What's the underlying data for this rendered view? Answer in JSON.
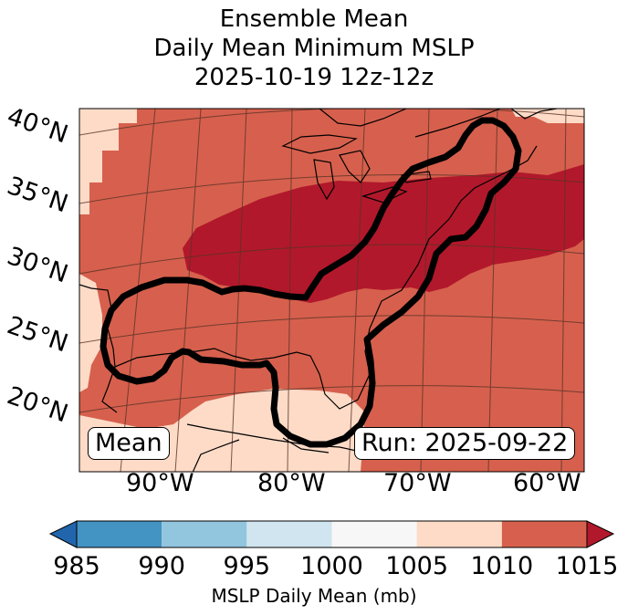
{
  "chart_data": {
    "type": "heatmap",
    "title": [
      "Ensemble Mean",
      "Daily Mean Minimum MSLP",
      "2025-10-19 12z-12z"
    ],
    "annotation_left": "Mean",
    "annotation_right": "Run: 2025-09-22",
    "lat_ticks": [
      "40°N",
      "35°N",
      "30°N",
      "25°N",
      "20°N"
    ],
    "lon_ticks": [
      "90°W",
      "80°W",
      "70°W",
      "60°W"
    ],
    "colorbar": {
      "label": "MSLP Daily Mean (mb)",
      "ticks": [
        "985",
        "990",
        "995",
        "1000",
        "1005",
        "1010",
        "1015"
      ],
      "bins": [
        {
          "range": [
            985,
            990
          ],
          "color": "#4393c3"
        },
        {
          "range": [
            990,
            995
          ],
          "color": "#92c5de"
        },
        {
          "range": [
            995,
            1000
          ],
          "color": "#d1e5f0"
        },
        {
          "range": [
            1000,
            1005
          ],
          "color": "#f7f7f7"
        },
        {
          "range": [
            1005,
            1010
          ],
          "color": "#fddbc7"
        },
        {
          "range": [
            1010,
            1015
          ],
          "color": "#d6604d"
        }
      ],
      "under_color": "#2166ac",
      "over_color": "#b2182b",
      "extend": "both"
    },
    "field_levels": [
      {
        "range": "1005-1010",
        "color": "#fddbc7"
      },
      {
        "range": "1010-1015",
        "color": "#d6604d"
      },
      {
        "range": ">1015",
        "color": "#b2182b"
      }
    ]
  }
}
